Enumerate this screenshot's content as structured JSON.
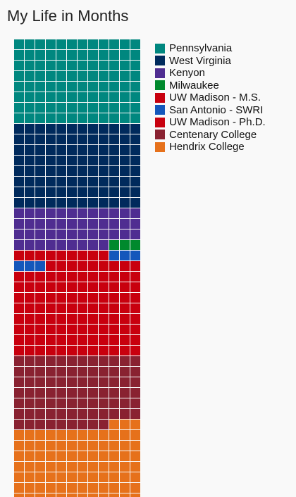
{
  "title": "My Life in Months",
  "chart_data": {
    "type": "waffle",
    "unit": "month",
    "columns": 12,
    "categories": [
      {
        "name": "Pennsylvania",
        "color": "#00877f",
        "months": 96
      },
      {
        "name": "West Virginia",
        "color": "#002a5c",
        "months": 96
      },
      {
        "name": "Kenyon",
        "color": "#4f2d91",
        "months": 45
      },
      {
        "name": "Milwaukee",
        "color": "#00892d",
        "months": 3
      },
      {
        "name": "UW Madison - M.S.",
        "color": "#c8000e",
        "months": 9
      },
      {
        "name": "San Antonio - SWRI",
        "color": "#1457bb",
        "months": 6
      },
      {
        "name": "UW Madison - Ph.D.",
        "color": "#c8000e",
        "months": 105
      },
      {
        "name": "Centenary College",
        "color": "#892231",
        "months": 81
      },
      {
        "name": "Hendrix College",
        "color": "#e6711b",
        "months": 87
      }
    ]
  }
}
